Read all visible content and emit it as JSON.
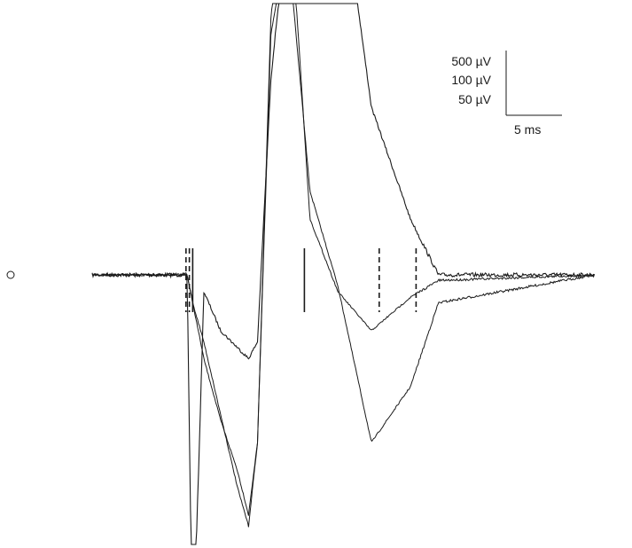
{
  "chart_data": {
    "type": "line",
    "title": "",
    "xlabel": "",
    "ylabel": "",
    "scale_bar": {
      "y_labels": [
        "500 µV",
        "100 µV",
        "50 µV"
      ],
      "x_label": "5 ms"
    },
    "time_ms": [
      -10,
      -1.5,
      -1.0,
      0.0,
      1.5,
      3.0,
      4.0,
      4.8,
      6.0,
      7.5,
      9.5,
      12.0,
      15.0,
      18.5,
      21.0,
      35.0
    ],
    "series": [
      {
        "key": "trace_50uV",
        "values": [
          0,
          0,
          -7,
          -0.3,
          -1,
          -1.3,
          -1.5,
          -1.2,
          3.5,
          6.5,
          10,
          7.5,
          3,
          1,
          0,
          0
        ]
      },
      {
        "key": "trace_100uV",
        "values": [
          0,
          0,
          -0.5,
          -1.5,
          -2.6,
          -3.5,
          -4.3,
          -3.0,
          4.3,
          6,
          1.5,
          -0.2,
          -3.0,
          -2.0,
          -0.5,
          0
        ]
      },
      {
        "key": "trace_500uV",
        "values": [
          0,
          0,
          -0.5,
          -1.2,
          -2.5,
          -3.8,
          -4.5,
          -3.0,
          4.6,
          7.3,
          1.0,
          -0.3,
          -1.0,
          -0.4,
          -0.1,
          0
        ]
      }
    ],
    "markers": [
      {
        "time_ms": -1.6,
        "style": "dashed"
      },
      {
        "time_ms": -1.3,
        "style": "dashed"
      },
      {
        "time_ms": -1.0,
        "style": "solid"
      },
      {
        "time_ms": 9.0,
        "style": "solid"
      },
      {
        "time_ms": 15.7,
        "style": "dashed"
      },
      {
        "time_ms": 19.0,
        "style": "dashed"
      }
    ],
    "colors": {
      "trace": "#1a1a1a",
      "background": "#ffffff"
    },
    "grid": false,
    "legend": "none"
  }
}
